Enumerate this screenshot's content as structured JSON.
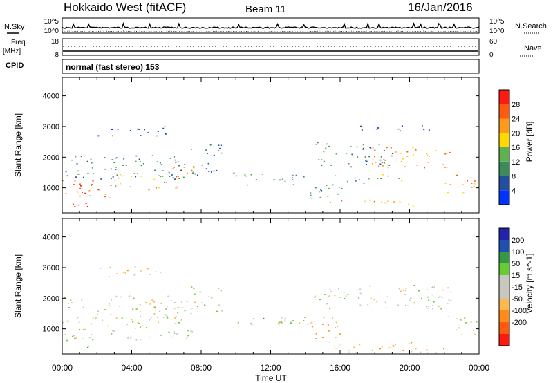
{
  "header": {
    "site": "Hokkaido West (fitACF)",
    "beam": "Beam 11",
    "date": "16/Jan/2016"
  },
  "strip_panels": {
    "nsky_label": "N.Sky",
    "nsearch_label": "N.Search",
    "freq_label_1": "Freq.",
    "freq_label_2": "[MHz]",
    "nave_label": "Nave",
    "cpid_label": "CPID",
    "noise_ticks_left": [
      "10^5",
      "10^0"
    ],
    "noise_ticks_right": [
      "10^5",
      "10^0"
    ],
    "freq_ticks_left": [
      "18",
      "8"
    ],
    "nave_ticks_right": [
      "60",
      "0"
    ],
    "cpid_text": "normal (fast stereo) 153"
  },
  "colors": {
    "power_scale": [
      "#0033ff",
      "#1f4f9e",
      "#3d8a5a",
      "#5fb050",
      "#ffd800",
      "#ff9a1a",
      "#ff5a10",
      "#ff1a10"
    ],
    "velocity_scale": [
      "#ff1a10",
      "#ff5a10",
      "#ff8c1a",
      "#ffb84d",
      "#c8c8c0",
      "#c8c8c0",
      "#66cc33",
      "#339944",
      "#1f4fb0",
      "#2222aa"
    ]
  },
  "chart_data": [
    {
      "type": "heatmap",
      "ylabel": "Slant Range [km]",
      "xlabel": "Time UT",
      "x_ticks": [
        "00:00",
        "04:00",
        "08:00",
        "12:00",
        "16:00",
        "20:00",
        "00:00"
      ],
      "y_ticks": [
        1000,
        2000,
        3000,
        4000
      ],
      "ylim": [
        180,
        4600
      ],
      "xlim_hours": [
        0,
        24
      ],
      "colorbar": {
        "label": "Power [dB]",
        "ticks": [
          4,
          8,
          12,
          16,
          20,
          24,
          28
        ],
        "range": [
          0,
          32
        ]
      },
      "echo_regions": [
        {
          "t": [
            0.0,
            3.0
          ],
          "r": [
            650,
            1300
          ],
          "power": 24
        },
        {
          "t": [
            0.3,
            1.5
          ],
          "r": [
            250,
            650
          ],
          "power": 28
        },
        {
          "t": [
            3.0,
            7.0
          ],
          "r": [
            950,
            1450
          ],
          "power": 20
        },
        {
          "t": [
            6.0,
            7.6
          ],
          "r": [
            1250,
            1850
          ],
          "power": 26
        },
        {
          "t": [
            0.0,
            7.0
          ],
          "r": [
            1300,
            2100
          ],
          "power": 9
        },
        {
          "t": [
            7.4,
            9.2
          ],
          "r": [
            1400,
            2450
          ],
          "power": 8
        },
        {
          "t": [
            9.8,
            14.0
          ],
          "r": [
            1100,
            1500
          ],
          "power": 12
        },
        {
          "t": [
            14.0,
            16.2
          ],
          "r": [
            650,
            1250
          ],
          "power": 11
        },
        {
          "t": [
            14.2,
            20.2
          ],
          "r": [
            420,
            620
          ],
          "power": 22
        },
        {
          "t": [
            15.6,
            19.6
          ],
          "r": [
            1150,
            1450
          ],
          "power": 14
        },
        {
          "t": [
            14.5,
            19.0
          ],
          "r": [
            1700,
            2500
          ],
          "power": 10
        },
        {
          "t": [
            17.8,
            22.4
          ],
          "r": [
            1650,
            2350
          ],
          "power": 22
        },
        {
          "t": [
            22.0,
            24.0
          ],
          "r": [
            800,
            1450
          ],
          "power": 24
        },
        {
          "t": [
            2.0,
            6.0
          ],
          "r": [
            2700,
            3050
          ],
          "power": 6
        },
        {
          "t": [
            17.0,
            21.5
          ],
          "r": [
            2850,
            3050
          ],
          "power": 5
        }
      ]
    },
    {
      "type": "heatmap",
      "ylabel": "Slant Range [km]",
      "xlabel": "Time UT",
      "x_ticks": [
        "00:00",
        "04:00",
        "08:00",
        "12:00",
        "16:00",
        "20:00",
        "00:00"
      ],
      "y_ticks": [
        1000,
        2000,
        3000,
        4000
      ],
      "ylim": [
        180,
        4600
      ],
      "xlim_hours": [
        0,
        24
      ],
      "colorbar": {
        "label": "Velocity [m s^-1]",
        "tick_labels": [
          "200",
          "100",
          "50",
          "15",
          "-15",
          "-50",
          "-100",
          "-200"
        ],
        "range": [
          -250,
          250
        ]
      },
      "echo_regions": [
        {
          "t": [
            0.0,
            7.5
          ],
          "r": [
            650,
            2100
          ],
          "velocity": 0
        },
        {
          "t": [
            0.2,
            1.6
          ],
          "r": [
            400,
            800
          ],
          "velocity": 40
        },
        {
          "t": [
            7.4,
            9.2
          ],
          "r": [
            1500,
            2400
          ],
          "velocity": 5
        },
        {
          "t": [
            10.0,
            14.0
          ],
          "r": [
            1150,
            1450
          ],
          "velocity": 40
        },
        {
          "t": [
            12.0,
            15.8
          ],
          "r": [
            1150,
            1450
          ],
          "velocity": 0
        },
        {
          "t": [
            14.0,
            16.0
          ],
          "r": [
            650,
            1250
          ],
          "velocity": -60
        },
        {
          "t": [
            14.0,
            20.2
          ],
          "r": [
            380,
            600
          ],
          "velocity": -40
        },
        {
          "t": [
            14.5,
            22.5
          ],
          "r": [
            1650,
            2450
          ],
          "velocity": 0
        },
        {
          "t": [
            22.0,
            24.0
          ],
          "r": [
            800,
            1450
          ],
          "velocity": 0
        },
        {
          "t": [
            2.0,
            6.0
          ],
          "r": [
            2700,
            3050
          ],
          "velocity": -30
        },
        {
          "t": [
            16.0,
            22.0
          ],
          "r": [
            200,
            380
          ],
          "velocity": -50
        }
      ]
    }
  ]
}
